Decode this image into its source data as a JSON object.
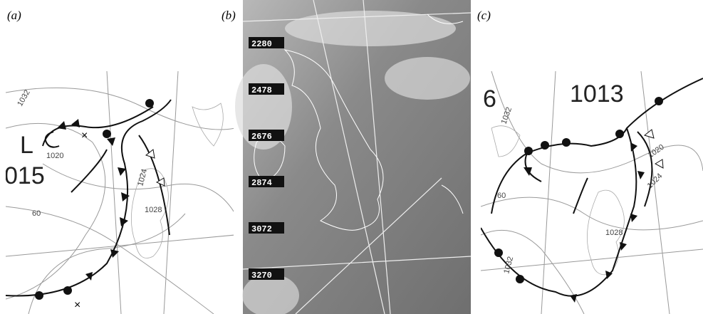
{
  "panels": [
    {
      "label": "(a)",
      "texts": [
        "1032",
        "L",
        "1020",
        "015",
        "1024",
        "1028",
        "60",
        "×",
        "×"
      ]
    },
    {
      "label": "(b)",
      "texts": [
        "2280",
        "2478",
        "2676",
        "2874",
        "3072",
        "3270"
      ]
    },
    {
      "label": "(c)",
      "texts": [
        "6",
        "1013",
        "1032",
        "1020",
        "1024",
        "60",
        "1028",
        "1032"
      ]
    }
  ]
}
